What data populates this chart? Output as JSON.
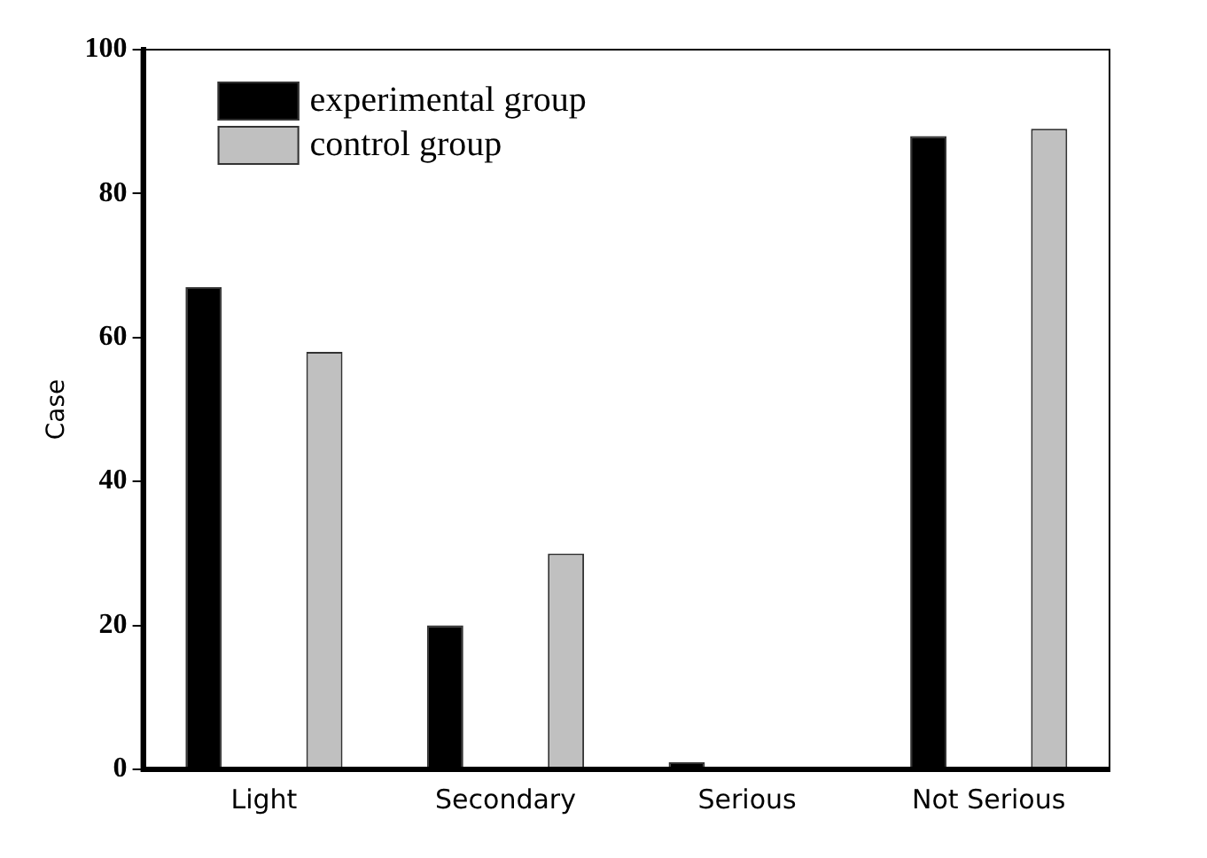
{
  "chart_data": {
    "type": "bar",
    "ylabel": "Case",
    "categories": [
      "Light",
      "Secondary",
      "Serious",
      "Not Serious"
    ],
    "series": [
      {
        "name": "experimental group",
        "color": "#000000",
        "values": [
          67,
          20,
          1,
          88
        ]
      },
      {
        "name": "control group",
        "color": "#c0c0c0",
        "values": [
          58,
          30,
          0,
          89
        ]
      }
    ],
    "ylim": [
      0,
      100
    ],
    "yticks": [
      0,
      20,
      40,
      60,
      80,
      100
    ],
    "grid": false,
    "legend": "top left"
  }
}
